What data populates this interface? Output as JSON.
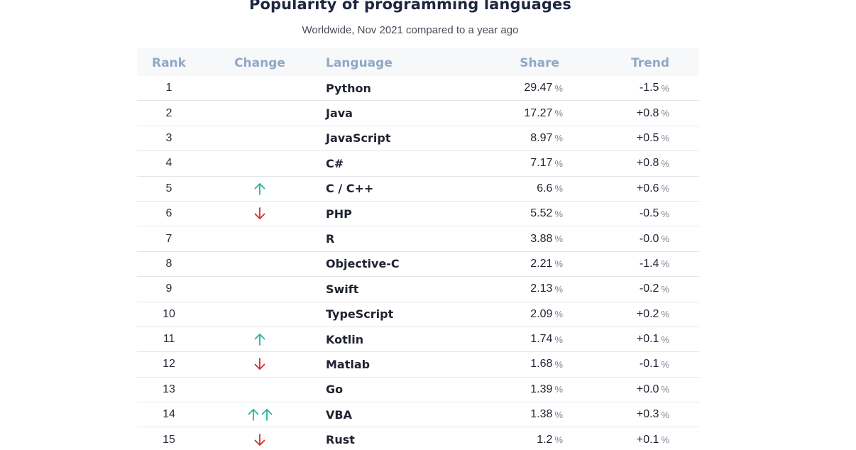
{
  "title": "Popularity of programming languages",
  "subtitle": "Worldwide, Nov 2021 compared to a year ago",
  "colors": {
    "up": "#2bb39a",
    "down": "#d62b2b",
    "header": "#8fa9c4"
  },
  "headers": {
    "rank": "Rank",
    "change": "Change",
    "language": "Language",
    "share": "Share",
    "trend": "Trend"
  },
  "percent_sign": "%",
  "rows": [
    {
      "rank": "1",
      "change": [],
      "language": "Python",
      "share": "29.47",
      "trend": "-1.5"
    },
    {
      "rank": "2",
      "change": [],
      "language": "Java",
      "share": "17.27",
      "trend": "+0.8"
    },
    {
      "rank": "3",
      "change": [],
      "language": "JavaScript",
      "share": "8.97",
      "trend": "+0.5"
    },
    {
      "rank": "4",
      "change": [],
      "language": "C#",
      "share": "7.17",
      "trend": "+0.8"
    },
    {
      "rank": "5",
      "change": [
        "up"
      ],
      "language": "C / C++",
      "share": "6.6",
      "trend": "+0.6"
    },
    {
      "rank": "6",
      "change": [
        "down"
      ],
      "language": "PHP",
      "share": "5.52",
      "trend": "-0.5"
    },
    {
      "rank": "7",
      "change": [],
      "language": "R",
      "share": "3.88",
      "trend": "-0.0"
    },
    {
      "rank": "8",
      "change": [],
      "language": "Objective-C",
      "share": "2.21",
      "trend": "-1.4"
    },
    {
      "rank": "9",
      "change": [],
      "language": "Swift",
      "share": "2.13",
      "trend": "-0.2"
    },
    {
      "rank": "10",
      "change": [],
      "language": "TypeScript",
      "share": "2.09",
      "trend": "+0.2"
    },
    {
      "rank": "11",
      "change": [
        "up"
      ],
      "language": "Kotlin",
      "share": "1.74",
      "trend": "+0.1"
    },
    {
      "rank": "12",
      "change": [
        "down"
      ],
      "language": "Matlab",
      "share": "1.68",
      "trend": "-0.1"
    },
    {
      "rank": "13",
      "change": [],
      "language": "Go",
      "share": "1.39",
      "trend": "+0.0"
    },
    {
      "rank": "14",
      "change": [
        "up",
        "up"
      ],
      "language": "VBA",
      "share": "1.38",
      "trend": "+0.3"
    },
    {
      "rank": "15",
      "change": [
        "down"
      ],
      "language": "Rust",
      "share": "1.2",
      "trend": "+0.1"
    }
  ]
}
